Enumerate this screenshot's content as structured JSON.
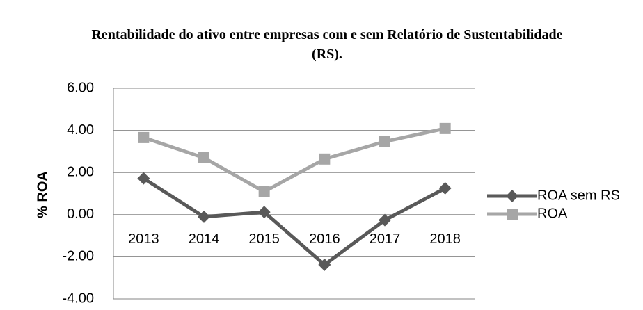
{
  "chart_data": {
    "type": "line",
    "title": "Rentabilidade do ativo entre empresas com e sem Relatório de Sustentabilidade (RS).",
    "y_label": "% ROA",
    "categories": [
      "2013",
      "2014",
      "2015",
      "2016",
      "2017",
      "2018"
    ],
    "series": [
      {
        "name": "ROA sem RS",
        "color": "#595959",
        "marker": "diamond",
        "values": [
          1.72,
          -0.1,
          0.12,
          -2.38,
          -0.26,
          1.25
        ]
      },
      {
        "name": "ROA",
        "color": "#a6a6a6",
        "marker": "square",
        "values": [
          3.66,
          2.7,
          1.09,
          2.64,
          3.47,
          4.09
        ]
      }
    ],
    "ylim": [
      -4,
      6
    ],
    "yticks": [
      {
        "value": -4,
        "label": "-4.00"
      },
      {
        "value": -2,
        "label": "-2.00"
      },
      {
        "value": 0,
        "label": "0.00"
      },
      {
        "value": 2,
        "label": "2.00"
      },
      {
        "value": 4,
        "label": "4.00"
      },
      {
        "value": 6,
        "label": "6.00"
      }
    ],
    "grid": true,
    "legend": "right"
  }
}
